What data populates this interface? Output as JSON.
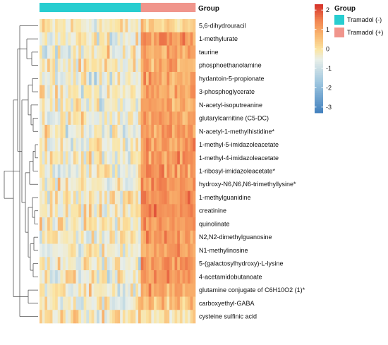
{
  "chart_data": {
    "type": "heatmap",
    "title": "",
    "top_annotation_label": "Group",
    "rows": [
      "5,6-dihydrouracil",
      "1-methylurate",
      "taurine",
      "phosphoethanolamine",
      "hydantoin-5-propionate",
      "3-phosphoglycerate",
      "N-acetyl-isoputreanine",
      "glutarylcarnitine (C5-DC)",
      "N-acetyl-1-methylhistidine*",
      "1-methyl-5-imidazoleacetate",
      "1-methyl-4-imidazoleacetate",
      "1-ribosyl-imidazoleacetate*",
      "hydroxy-N6,N6,N6-trimethyllysine*",
      "1-methylguanidine",
      "creatinine",
      "quinolinate",
      "N2,N2-dimethylguanosine",
      "N1-methylinosine",
      "5-(galactosylhydroxy)-L-lysine",
      "4-acetamidobutanoate",
      "glutamine conjugate of C6H10O2 (1)*",
      "carboxyethyl-GABA",
      "cysteine sulfinic acid"
    ],
    "groups": [
      {
        "name": "Tramadol (-)",
        "color": "#27cdd0",
        "n_columns": 39
      },
      {
        "name": "Tramadol (+)",
        "color": "#f0958c",
        "n_columns": 21
      }
    ],
    "group_mean_zscore": [
      [
        -0.2,
        0.3
      ],
      [
        -0.4,
        1.2
      ],
      [
        -0.3,
        1.0
      ],
      [
        -0.3,
        0.9
      ],
      [
        -0.3,
        1.0
      ],
      [
        -0.3,
        1.0
      ],
      [
        -0.3,
        1.0
      ],
      [
        -0.3,
        1.0
      ],
      [
        -0.3,
        1.1
      ],
      [
        -0.3,
        1.2
      ],
      [
        -0.3,
        1.2
      ],
      [
        -0.3,
        1.2
      ],
      [
        -0.3,
        1.2
      ],
      [
        -0.3,
        1.3
      ],
      [
        -0.3,
        1.4
      ],
      [
        -0.3,
        1.3
      ],
      [
        -0.3,
        1.2
      ],
      [
        -0.3,
        1.1
      ],
      [
        -0.3,
        1.2
      ],
      [
        -0.3,
        1.2
      ],
      [
        -0.3,
        1.0
      ],
      [
        -0.2,
        0.6
      ],
      [
        -0.1,
        0.1
      ]
    ],
    "color_scale": {
      "ticks": [
        "2",
        "1",
        "0",
        "-1",
        "-2",
        "-3"
      ],
      "tick_values": [
        2,
        1,
        0,
        -1,
        -2,
        -3
      ],
      "range": [
        -3.3,
        2.3
      ],
      "stops": [
        {
          "value": -3.3,
          "color": "#3f7ebd"
        },
        {
          "value": -1.7,
          "color": "#9dc6df"
        },
        {
          "value": -0.5,
          "color": "#e9efe9"
        },
        {
          "value": 0.0,
          "color": "#fbe5a3"
        },
        {
          "value": 0.8,
          "color": "#f9b46e"
        },
        {
          "value": 1.5,
          "color": "#f28551"
        },
        {
          "value": 2.3,
          "color": "#d7352c"
        }
      ]
    },
    "legend": {
      "title": "Group",
      "placement": "top-right",
      "entries": [
        "Tramadol (-)",
        "Tramadol (+)"
      ]
    },
    "row_dendrogram": true
  }
}
